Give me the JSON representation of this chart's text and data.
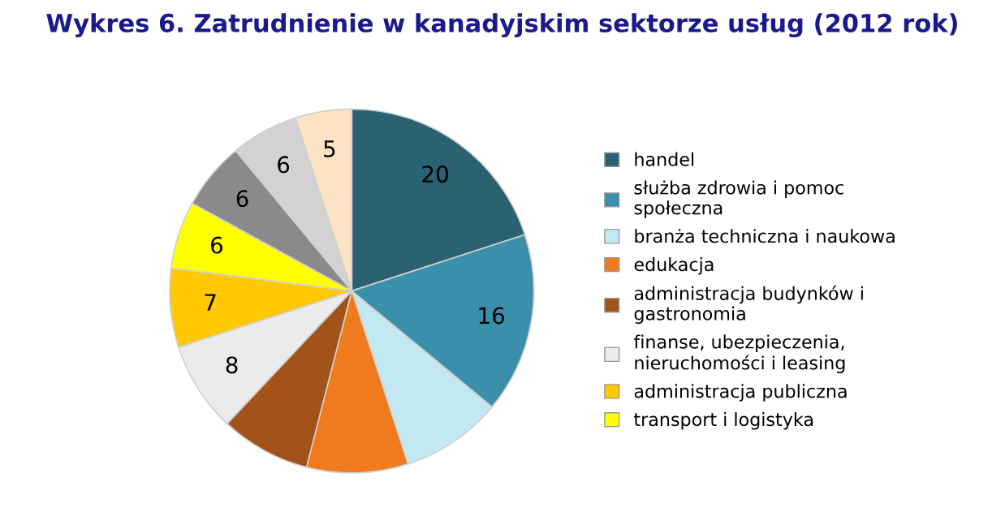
{
  "chart_data": {
    "type": "pie",
    "title": "Wykres 6. Zatrudnienie w kanadyjskim sektorze usług (2012 rok)",
    "categories": [
      "handel",
      "służba zdrowia i pomoc społeczna",
      "branża techniczna i naukowa",
      "edukacja",
      "administracja budynków i gastronomia",
      "finanse, ubezpieczenia, nieruchomości i leasing",
      "administracja publiczna",
      "transport i logistyka",
      null,
      null,
      null
    ],
    "values": [
      20,
      16,
      9,
      9,
      8,
      8,
      7,
      6,
      6,
      6,
      5
    ],
    "value_labels": [
      "20",
      "16",
      null,
      null,
      null,
      "8",
      "7",
      "6",
      "6",
      "6",
      "5"
    ],
    "colors": [
      "#2a6272",
      "#3a90aa",
      "#c2e8f2",
      "#f07a1e",
      "#a3531a",
      "#ebebeb",
      "#ffc800",
      "#ffff00",
      "#8a8a8a",
      "#d2d2d2",
      "#fde2c4"
    ],
    "legend": "right"
  }
}
